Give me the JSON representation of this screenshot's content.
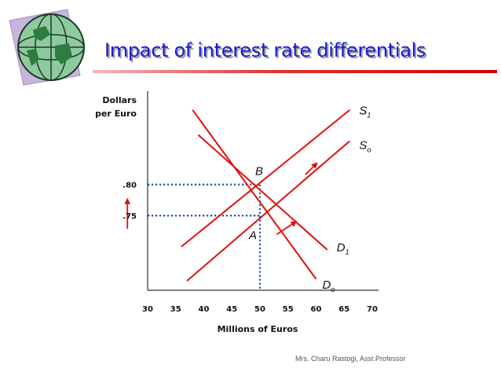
{
  "slide": {
    "title": "Impact of interest rate differentials",
    "footer": "Mrs. Charu Rastogi, Asst.Professor",
    "accent_color": "#1a1ad6",
    "rule_color": "#cc0000",
    "line_color": "#e01010",
    "guide_color": "#1f4fb0",
    "icon": "globe-icon"
  },
  "chart_data": {
    "type": "line",
    "title": "",
    "ylabel_line1": "Dollars",
    "ylabel_line2": "per Euro",
    "xlabel": "Millions of Euros",
    "x_ticks": [
      "30",
      "35",
      "40",
      "45",
      "50",
      "55",
      "60",
      "65",
      "70"
    ],
    "xlim": [
      30,
      70
    ],
    "ylim": [
      0.63,
      0.95
    ],
    "y_tick_labels": [
      {
        "label": ".80",
        "value": 0.8
      },
      {
        "label": ".75",
        "value": 0.75
      }
    ],
    "series": [
      {
        "name": "S1",
        "base": "S",
        "sub": "1",
        "points": [
          [
            36,
            0.7
          ],
          [
            66,
            0.92
          ]
        ]
      },
      {
        "name": "So",
        "base": "S",
        "sub": "o",
        "points": [
          [
            37,
            0.645
          ],
          [
            66,
            0.87
          ]
        ]
      },
      {
        "name": "D1",
        "base": "D",
        "sub": "1",
        "points": [
          [
            39,
            0.88
          ],
          [
            62,
            0.695
          ]
        ]
      },
      {
        "name": "Do",
        "base": "D",
        "sub": "o",
        "points": [
          [
            38,
            0.92
          ],
          [
            60,
            0.648
          ]
        ]
      }
    ],
    "points": [
      {
        "label": "B",
        "x": 50,
        "y": 0.8
      },
      {
        "label": "A",
        "x": 50,
        "y": 0.75
      }
    ],
    "arrows": [
      {
        "name": "price-rise-arrow",
        "from": [
          26.4,
          0.729
        ],
        "to": [
          26.4,
          0.776
        ]
      },
      {
        "name": "supply-shift-arrow",
        "from": [
          58.1,
          0.816
        ],
        "to": [
          60.1,
          0.834
        ]
      },
      {
        "name": "demand-shift-arrow",
        "from": [
          53,
          0.72
        ],
        "to": [
          56.4,
          0.74
        ]
      }
    ]
  }
}
